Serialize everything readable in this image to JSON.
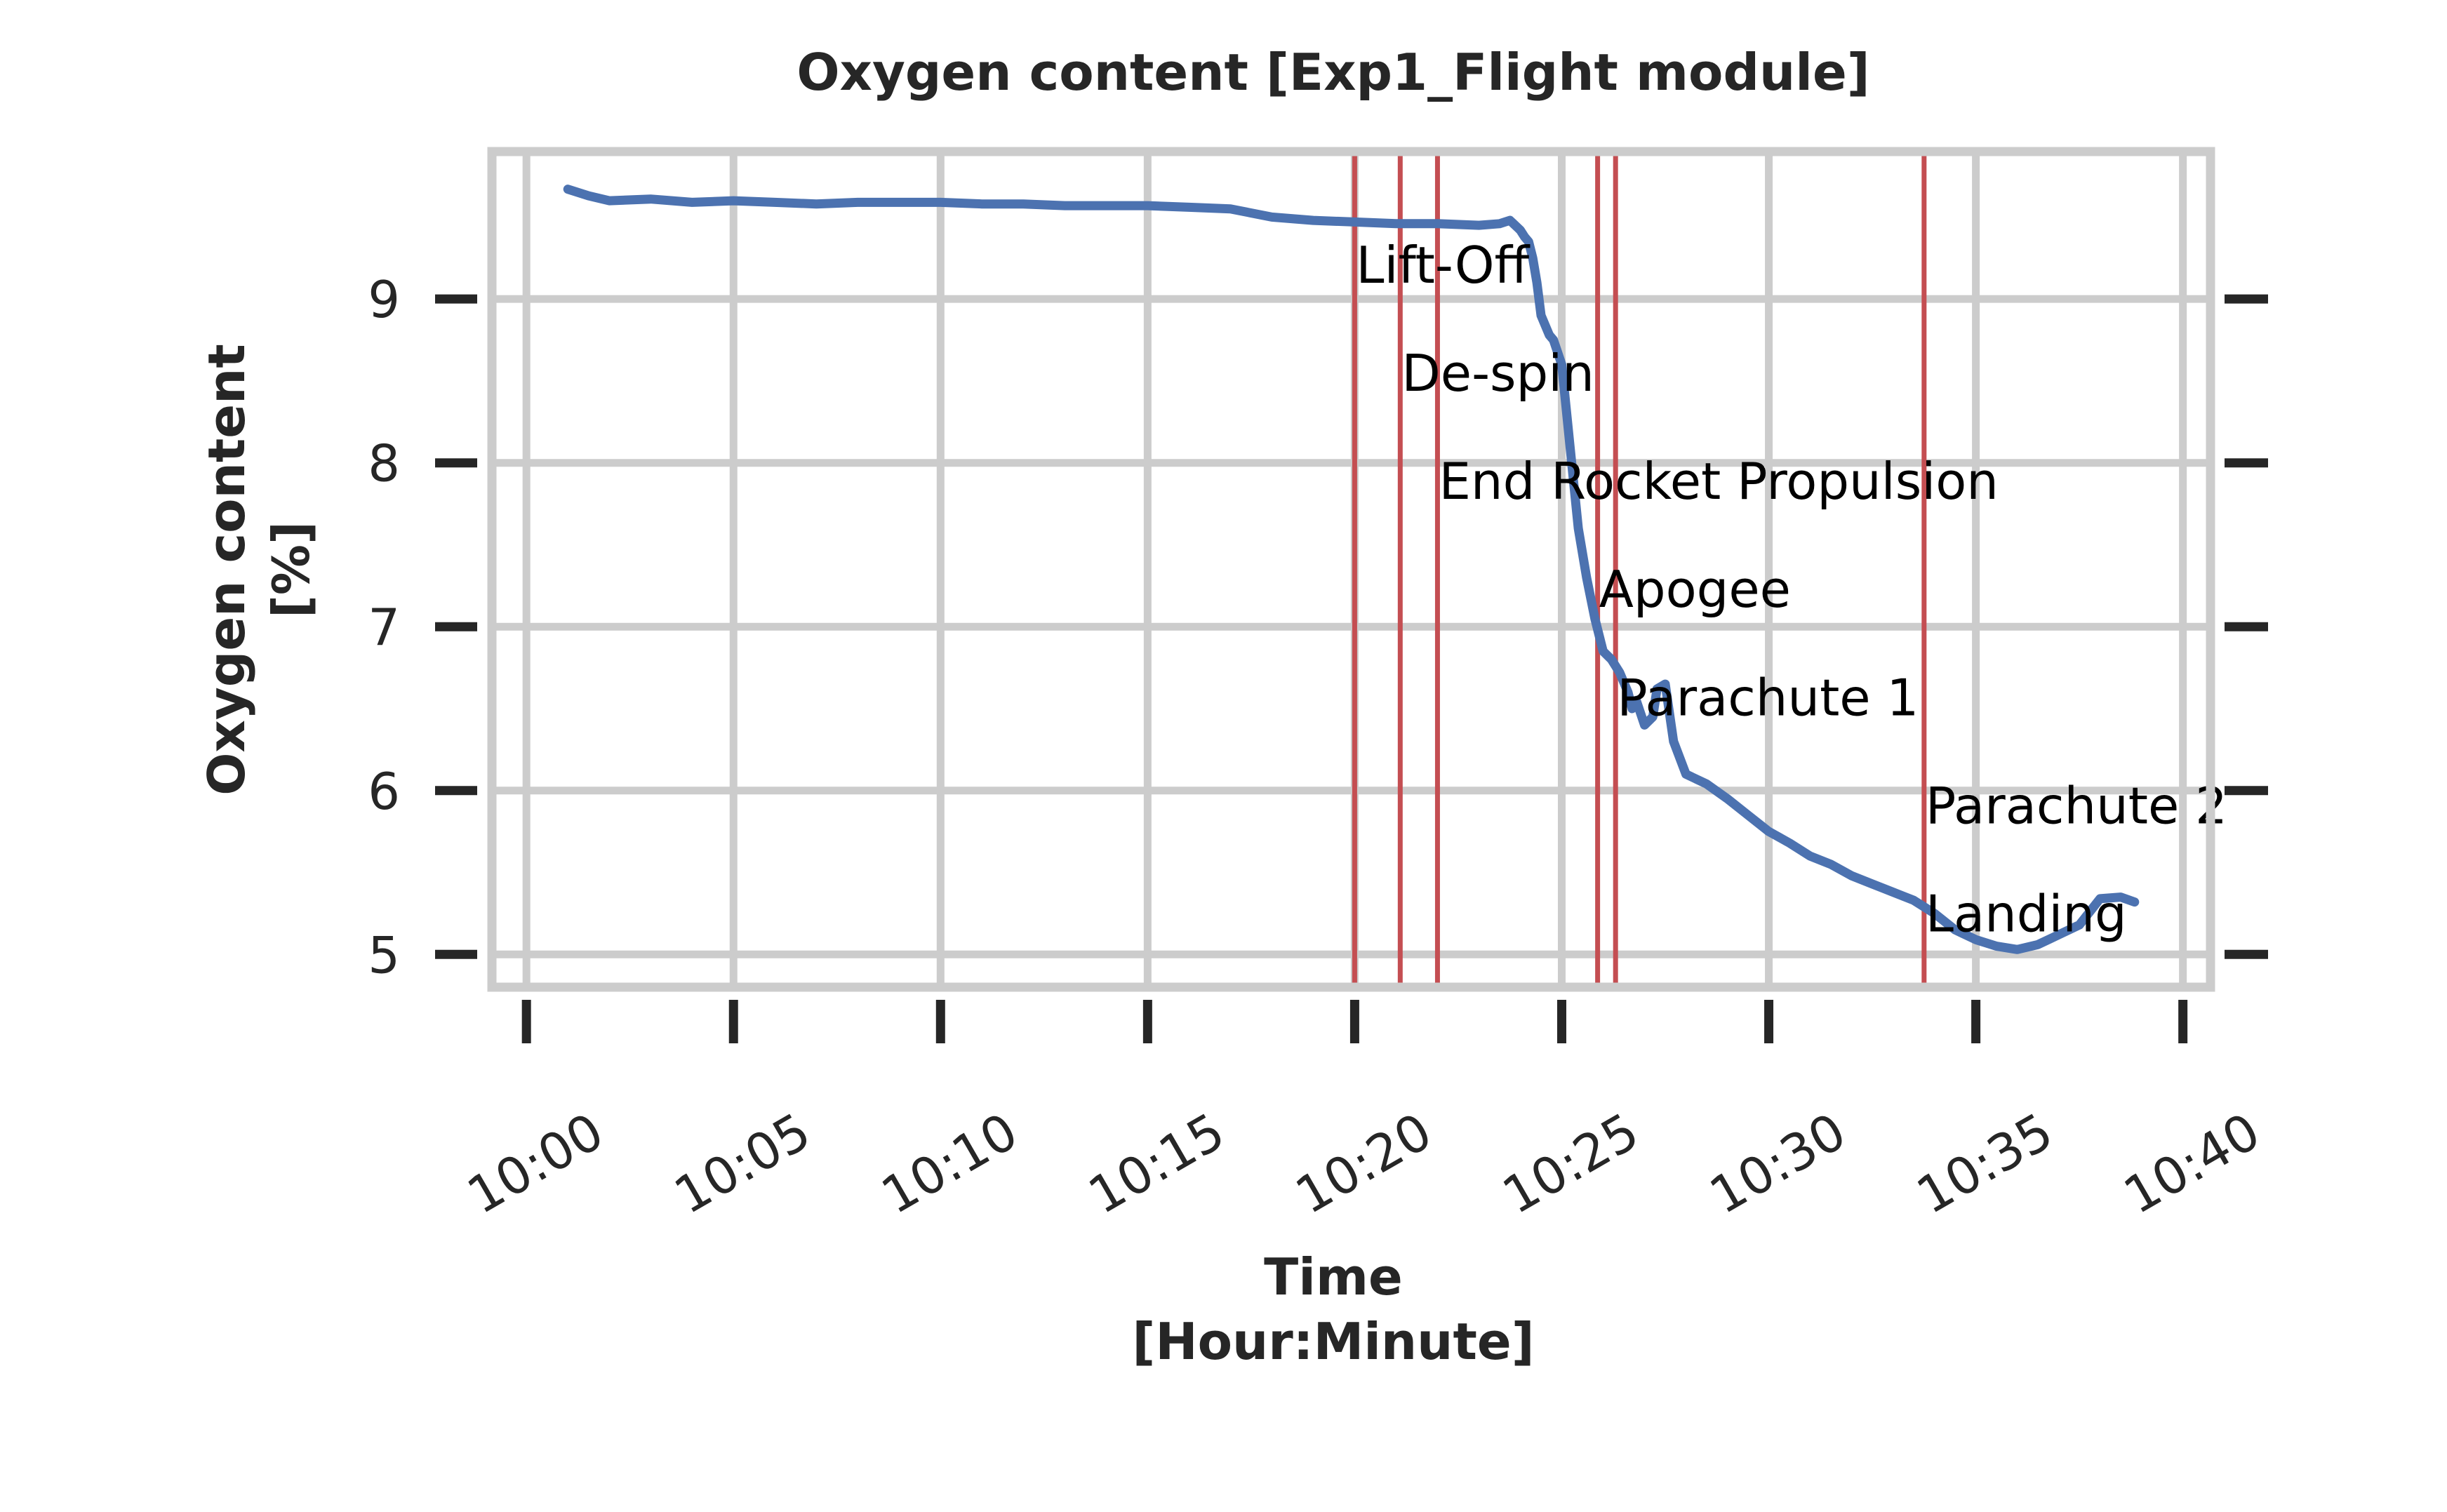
{
  "chart_data": {
    "type": "line",
    "title": "Oxygen content [Exp1_Flight module]",
    "xlabel": "Time\n[Hour:Minute]",
    "ylabel": "Oxygen content\n[%]",
    "xlim": [
      "09:59:10",
      "10:40:40"
    ],
    "ylim": [
      4.8,
      9.9
    ],
    "x_ticks": [
      "10:00",
      "10:05",
      "10:10",
      "10:15",
      "10:20",
      "10:25",
      "10:30",
      "10:35",
      "10:40"
    ],
    "y_ticks": [
      5,
      6,
      7,
      8,
      9
    ],
    "grid": true,
    "series_color": "#4c72b0",
    "event_color": "#c44e52",
    "series": [
      {
        "x": [
          "10:01:00",
          "10:01:30",
          "10:02:00",
          "10:03:00",
          "10:04:00",
          "10:05:00",
          "10:06:00",
          "10:07:00",
          "10:08:00",
          "10:09:00",
          "10:10:00",
          "10:11:00",
          "10:12:00",
          "10:13:00",
          "10:14:00",
          "10:15:00",
          "10:16:00",
          "10:17:00",
          "10:18:00",
          "10:19:00",
          "10:20:00",
          "10:21:00",
          "10:22:00",
          "10:23:00",
          "10:23:30",
          "10:23:45",
          "10:24:00",
          "10:24:06",
          "10:24:12",
          "10:24:18",
          "10:24:24",
          "10:24:30",
          "10:24:42",
          "10:24:48",
          "10:25:00",
          "10:25:12",
          "10:25:24",
          "10:25:36",
          "10:25:48",
          "10:26:00",
          "10:26:12",
          "10:26:24",
          "10:26:36",
          "10:26:42",
          "10:26:48",
          "10:27:00",
          "10:27:12",
          "10:27:18",
          "10:27:30",
          "10:27:42",
          "10:28:00",
          "10:28:30",
          "10:29:00",
          "10:29:30",
          "10:30:00",
          "10:30:30",
          "10:31:00",
          "10:31:30",
          "10:32:00",
          "10:32:30",
          "10:33:00",
          "10:33:30",
          "10:34:00",
          "10:34:30",
          "10:35:00",
          "10:35:30",
          "10:36:00",
          "10:36:30",
          "10:37:00",
          "10:37:30",
          "10:38:00",
          "10:38:30",
          "10:38:50"
        ],
        "y": [
          9.67,
          9.63,
          9.6,
          9.61,
          9.59,
          9.6,
          9.59,
          9.58,
          9.59,
          9.59,
          9.59,
          9.58,
          9.58,
          9.57,
          9.57,
          9.57,
          9.56,
          9.55,
          9.5,
          9.48,
          9.47,
          9.46,
          9.46,
          9.45,
          9.46,
          9.48,
          9.42,
          9.38,
          9.35,
          9.25,
          9.1,
          8.9,
          8.78,
          8.75,
          8.6,
          8.1,
          7.6,
          7.3,
          7.05,
          6.85,
          6.8,
          6.72,
          6.6,
          6.5,
          6.55,
          6.4,
          6.45,
          6.62,
          6.65,
          6.3,
          6.1,
          6.04,
          5.95,
          5.85,
          5.75,
          5.68,
          5.6,
          5.55,
          5.48,
          5.43,
          5.38,
          5.33,
          5.25,
          5.15,
          5.09,
          5.05,
          5.03,
          5.06,
          5.12,
          5.18,
          5.34,
          5.35,
          5.32
        ]
      }
    ],
    "events": [
      {
        "label": "Lift-Off",
        "x": "10:20:00",
        "label_y": 9.1
      },
      {
        "label": "De-spin",
        "x": "10:21:06",
        "label_y": 8.44
      },
      {
        "label": "End Rocket Propulsion",
        "x": "10:22:00",
        "label_y": 7.78
      },
      {
        "label": "Apogee",
        "x": "10:25:52",
        "label_y": 7.12
      },
      {
        "label": "Parachute 1",
        "x": "10:26:18",
        "label_y": 6.46
      },
      {
        "label": "Parachute 2",
        "x": "10:33:45",
        "label_y": 5.8
      },
      {
        "label": "Landing",
        "x": "10:33:45",
        "label_y": 5.14
      }
    ]
  }
}
